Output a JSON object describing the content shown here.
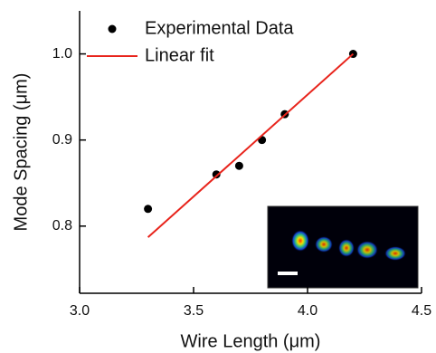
{
  "chart_data": {
    "type": "scatter",
    "xlabel": "Wire Length (μm)",
    "ylabel": "Mode Spacing (μm)",
    "series": [
      {
        "name": "Experimental Data",
        "color": "#000000",
        "style": "markers",
        "x": [
          3.3,
          3.6,
          3.7,
          3.8,
          3.9,
          4.2
        ],
        "values": [
          0.82,
          0.86,
          0.87,
          0.9,
          0.93,
          1.0
        ]
      },
      {
        "name": "Linear fit",
        "color": "#e8241c",
        "style": "line",
        "x": [
          3.3,
          4.2
        ],
        "values": [
          0.787,
          1.0
        ]
      }
    ],
    "xlim": [
      3.0,
      4.5
    ],
    "ylim": [
      0.722,
      1.05
    ],
    "xticks": [
      {
        "value": 3.0,
        "label": "3.0"
      },
      3.5,
      {
        "value": 4.0,
        "label": "4.0"
      },
      4.5
    ],
    "yticks": [
      0.8,
      0.9,
      {
        "value": 1.0,
        "label": "1.0"
      }
    ],
    "legend": "upper-left"
  }
}
